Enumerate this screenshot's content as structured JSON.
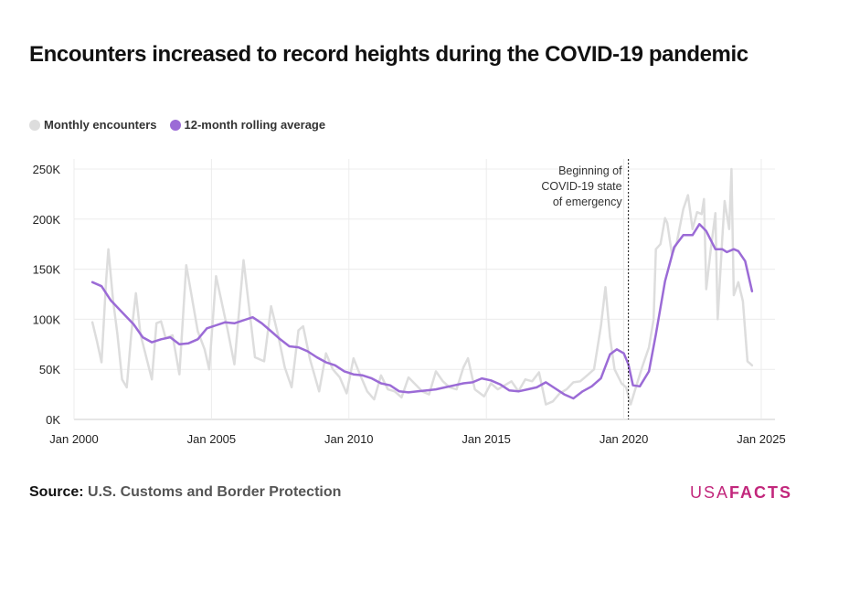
{
  "title": "Encounters increased to record heights during the COVID-19 pandemic",
  "legend": {
    "monthly_label": "Monthly encounters",
    "rolling_label": "12-month rolling average"
  },
  "colors": {
    "monthly": "#dddddd",
    "rolling": "#9b6bd6",
    "grid": "#ececec",
    "brand": "#c2277c"
  },
  "source": {
    "label": "Source:",
    "text": "U.S. Customs and Border Protection"
  },
  "logo": {
    "light": "USA",
    "bold": "FACTS"
  },
  "chart_data": {
    "type": "line",
    "title": "Encounters increased to record heights during the COVID-19 pandemic",
    "xlabel": "",
    "ylabel": "",
    "x_ticks": [
      "Jan 2000",
      "Jan 2005",
      "Jan 2010",
      "Jan 2015",
      "Jan 2020",
      "Jan 2025"
    ],
    "y_ticks": [
      "0K",
      "50K",
      "100K",
      "150K",
      "200K",
      "250K"
    ],
    "ylim": [
      0,
      260000
    ],
    "xlim": [
      "2000-01",
      "2025-06"
    ],
    "grid": true,
    "legend_position": "top-left",
    "annotation": {
      "x": "2020-03",
      "lines": [
        "Beginning of",
        "COVID-19 state",
        "of emergency"
      ]
    },
    "series": [
      {
        "name": "Monthly encounters",
        "points": [
          [
            "2000-09",
            97000
          ],
          [
            "2000-11",
            78000
          ],
          [
            "2001-01",
            57000
          ],
          [
            "2001-03",
            138000
          ],
          [
            "2001-04",
            170000
          ],
          [
            "2001-06",
            120000
          ],
          [
            "2001-08",
            84000
          ],
          [
            "2001-10",
            40000
          ],
          [
            "2001-12",
            32000
          ],
          [
            "2002-02",
            86000
          ],
          [
            "2002-04",
            126000
          ],
          [
            "2002-06",
            85000
          ],
          [
            "2002-09",
            58000
          ],
          [
            "2002-11",
            40000
          ],
          [
            "2003-01",
            96000
          ],
          [
            "2003-03",
            98000
          ],
          [
            "2003-05",
            81000
          ],
          [
            "2003-08",
            84000
          ],
          [
            "2003-11",
            45000
          ],
          [
            "2004-02",
            154000
          ],
          [
            "2004-04",
            128000
          ],
          [
            "2004-07",
            88000
          ],
          [
            "2004-10",
            70000
          ],
          [
            "2004-12",
            50000
          ],
          [
            "2005-03",
            143000
          ],
          [
            "2005-05",
            122000
          ],
          [
            "2005-08",
            90000
          ],
          [
            "2005-11",
            55000
          ],
          [
            "2006-03",
            159000
          ],
          [
            "2006-05",
            120000
          ],
          [
            "2006-08",
            62000
          ],
          [
            "2006-12",
            58000
          ],
          [
            "2007-03",
            113000
          ],
          [
            "2007-06",
            85000
          ],
          [
            "2007-09",
            52000
          ],
          [
            "2007-12",
            32000
          ],
          [
            "2008-03",
            89000
          ],
          [
            "2008-05",
            93000
          ],
          [
            "2008-08",
            60000
          ],
          [
            "2008-12",
            28000
          ],
          [
            "2009-03",
            66000
          ],
          [
            "2009-06",
            50000
          ],
          [
            "2009-09",
            42000
          ],
          [
            "2009-12",
            26000
          ],
          [
            "2010-03",
            61000
          ],
          [
            "2010-06",
            44000
          ],
          [
            "2010-09",
            28000
          ],
          [
            "2010-12",
            20000
          ],
          [
            "2011-03",
            44000
          ],
          [
            "2011-06",
            30000
          ],
          [
            "2011-09",
            28000
          ],
          [
            "2011-12",
            22000
          ],
          [
            "2012-03",
            42000
          ],
          [
            "2012-06",
            35000
          ],
          [
            "2012-09",
            28000
          ],
          [
            "2012-12",
            25000
          ],
          [
            "2013-03",
            48000
          ],
          [
            "2013-06",
            38000
          ],
          [
            "2013-09",
            32000
          ],
          [
            "2013-12",
            30000
          ],
          [
            "2014-03",
            52000
          ],
          [
            "2014-05",
            61000
          ],
          [
            "2014-08",
            30000
          ],
          [
            "2014-12",
            23000
          ],
          [
            "2015-03",
            36000
          ],
          [
            "2015-06",
            30000
          ],
          [
            "2015-09",
            34000
          ],
          [
            "2015-12",
            38000
          ],
          [
            "2016-03",
            28000
          ],
          [
            "2016-06",
            40000
          ],
          [
            "2016-09",
            38000
          ],
          [
            "2016-12",
            47000
          ],
          [
            "2017-03",
            15000
          ],
          [
            "2017-06",
            18000
          ],
          [
            "2017-09",
            26000
          ],
          [
            "2017-12",
            30000
          ],
          [
            "2018-03",
            37000
          ],
          [
            "2018-06",
            38000
          ],
          [
            "2018-09",
            44000
          ],
          [
            "2018-12",
            50000
          ],
          [
            "2019-03",
            93000
          ],
          [
            "2019-05",
            132000
          ],
          [
            "2019-07",
            82000
          ],
          [
            "2019-09",
            50000
          ],
          [
            "2019-12",
            36000
          ],
          [
            "2020-02",
            32000
          ],
          [
            "2020-04",
            15000
          ],
          [
            "2020-06",
            30000
          ],
          [
            "2020-09",
            52000
          ],
          [
            "2020-12",
            72000
          ],
          [
            "2021-02",
            100000
          ],
          [
            "2021-03",
            170000
          ],
          [
            "2021-05",
            175000
          ],
          [
            "2021-07",
            201000
          ],
          [
            "2021-08",
            196000
          ],
          [
            "2021-10",
            165000
          ],
          [
            "2021-12",
            175000
          ],
          [
            "2022-03",
            210000
          ],
          [
            "2022-05",
            224000
          ],
          [
            "2022-07",
            190000
          ],
          [
            "2022-09",
            207000
          ],
          [
            "2022-11",
            205000
          ],
          [
            "2022-12",
            220000
          ],
          [
            "2023-01",
            130000
          ],
          [
            "2023-03",
            170000
          ],
          [
            "2023-05",
            206000
          ],
          [
            "2023-06",
            100000
          ],
          [
            "2023-08",
            180000
          ],
          [
            "2023-09",
            218000
          ],
          [
            "2023-11",
            190000
          ],
          [
            "2023-12",
            250000
          ],
          [
            "2024-01",
            124000
          ],
          [
            "2024-03",
            137000
          ],
          [
            "2024-05",
            118000
          ],
          [
            "2024-07",
            58000
          ],
          [
            "2024-08",
            56000
          ],
          [
            "2024-09",
            54000
          ]
        ]
      },
      {
        "name": "12-month rolling average",
        "points": [
          [
            "2000-09",
            137000
          ],
          [
            "2001-01",
            133000
          ],
          [
            "2001-05",
            119000
          ],
          [
            "2001-10",
            107000
          ],
          [
            "2002-03",
            95000
          ],
          [
            "2002-07",
            82000
          ],
          [
            "2002-11",
            77000
          ],
          [
            "2003-03",
            80000
          ],
          [
            "2003-07",
            82000
          ],
          [
            "2003-11",
            75000
          ],
          [
            "2004-03",
            76000
          ],
          [
            "2004-07",
            80000
          ],
          [
            "2004-11",
            91000
          ],
          [
            "2005-03",
            94000
          ],
          [
            "2005-07",
            97000
          ],
          [
            "2005-11",
            96000
          ],
          [
            "2006-03",
            99000
          ],
          [
            "2006-07",
            102000
          ],
          [
            "2006-11",
            96000
          ],
          [
            "2007-03",
            88000
          ],
          [
            "2007-07",
            80000
          ],
          [
            "2007-11",
            73000
          ],
          [
            "2008-03",
            72000
          ],
          [
            "2008-07",
            68000
          ],
          [
            "2008-11",
            62000
          ],
          [
            "2009-03",
            57000
          ],
          [
            "2009-07",
            54000
          ],
          [
            "2009-11",
            48000
          ],
          [
            "2010-03",
            45000
          ],
          [
            "2010-07",
            44000
          ],
          [
            "2010-11",
            41000
          ],
          [
            "2011-03",
            36000
          ],
          [
            "2011-07",
            34000
          ],
          [
            "2011-11",
            28000
          ],
          [
            "2012-03",
            27000
          ],
          [
            "2012-07",
            28000
          ],
          [
            "2012-11",
            29000
          ],
          [
            "2013-03",
            30000
          ],
          [
            "2013-07",
            32000
          ],
          [
            "2013-11",
            34000
          ],
          [
            "2014-03",
            36000
          ],
          [
            "2014-07",
            37000
          ],
          [
            "2014-11",
            41000
          ],
          [
            "2015-03",
            39000
          ],
          [
            "2015-07",
            35000
          ],
          [
            "2015-11",
            29000
          ],
          [
            "2016-03",
            28000
          ],
          [
            "2016-07",
            30000
          ],
          [
            "2016-11",
            32000
          ],
          [
            "2017-03",
            37000
          ],
          [
            "2017-07",
            31000
          ],
          [
            "2017-11",
            25000
          ],
          [
            "2018-03",
            21000
          ],
          [
            "2018-07",
            28000
          ],
          [
            "2018-11",
            33000
          ],
          [
            "2019-03",
            41000
          ],
          [
            "2019-07",
            65000
          ],
          [
            "2019-10",
            70000
          ],
          [
            "2020-01",
            66000
          ],
          [
            "2020-03",
            55000
          ],
          [
            "2020-05",
            34000
          ],
          [
            "2020-08",
            33000
          ],
          [
            "2020-12",
            48000
          ],
          [
            "2021-03",
            85000
          ],
          [
            "2021-07",
            138000
          ],
          [
            "2021-11",
            172000
          ],
          [
            "2022-03",
            184000
          ],
          [
            "2022-07",
            184000
          ],
          [
            "2022-10",
            195000
          ],
          [
            "2023-01",
            188000
          ],
          [
            "2023-05",
            170000
          ],
          [
            "2023-08",
            170000
          ],
          [
            "2023-10",
            167000
          ],
          [
            "2024-01",
            170000
          ],
          [
            "2024-03",
            168000
          ],
          [
            "2024-06",
            158000
          ],
          [
            "2024-09",
            128000
          ]
        ]
      }
    ]
  }
}
